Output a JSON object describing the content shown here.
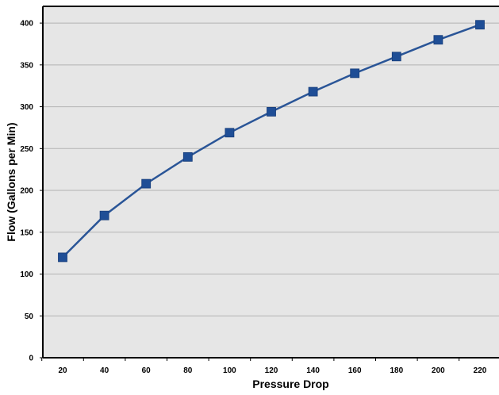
{
  "chart_data": {
    "type": "line",
    "title": "",
    "xlabel": "Pressure Drop",
    "ylabel": "Flow (Gallons per Min)",
    "x": [
      20,
      40,
      60,
      80,
      100,
      120,
      140,
      160,
      180,
      200,
      220
    ],
    "series": [
      {
        "values": [
          120,
          170,
          208,
          240,
          269,
          294,
          318,
          340,
          360,
          380,
          398
        ]
      }
    ],
    "xticks": [
      "20",
      "40",
      "60",
      "80",
      "100",
      "120",
      "140",
      "160",
      "180",
      "200",
      "220"
    ],
    "yticks": [
      "0",
      "50",
      "100",
      "150",
      "200",
      "250",
      "300",
      "350",
      "400"
    ],
    "ylim": [
      0,
      420
    ],
    "grid": "horizontal",
    "legend": "none",
    "colors": {
      "line": "#2a5597",
      "marker": "#1f4e96",
      "plot_background": "#e6e6e6",
      "grid": "#b3b3b3",
      "frame": "#000000"
    },
    "marker": "square-icon"
  }
}
